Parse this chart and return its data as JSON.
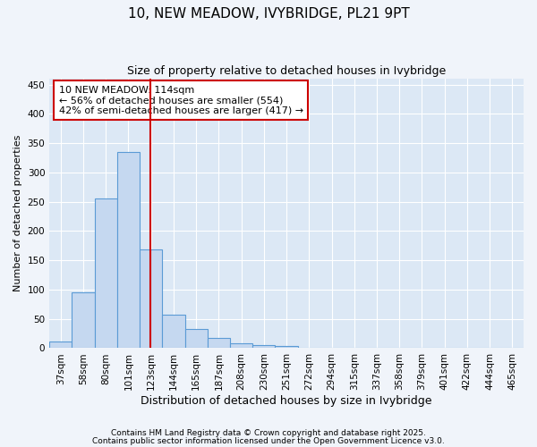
{
  "title1": "10, NEW MEADOW, IVYBRIDGE, PL21 9PT",
  "title2": "Size of property relative to detached houses in Ivybridge",
  "xlabel": "Distribution of detached houses by size in Ivybridge",
  "ylabel": "Number of detached properties",
  "categories": [
    "37sqm",
    "58sqm",
    "80sqm",
    "101sqm",
    "123sqm",
    "144sqm",
    "165sqm",
    "187sqm",
    "208sqm",
    "230sqm",
    "251sqm",
    "272sqm",
    "294sqm",
    "315sqm",
    "337sqm",
    "358sqm",
    "379sqm",
    "401sqm",
    "422sqm",
    "444sqm",
    "465sqm"
  ],
  "values": [
    12,
    95,
    255,
    335,
    168,
    57,
    32,
    18,
    8,
    5,
    4,
    1,
    1,
    0,
    1,
    0,
    0,
    0,
    1,
    0,
    0
  ],
  "bar_color": "#c5d8f0",
  "bar_edge_color": "#5b9bd5",
  "vline_x_index": 3.97,
  "vline_color": "#cc0000",
  "annotation_text": "10 NEW MEADOW: 114sqm\n← 56% of detached houses are smaller (554)\n42% of semi-detached houses are larger (417) →",
  "annotation_box_color": "#ffffff",
  "annotation_box_edge": "#cc0000",
  "ylim": [
    0,
    460
  ],
  "yticks": [
    0,
    50,
    100,
    150,
    200,
    250,
    300,
    350,
    400,
    450
  ],
  "footer1": "Contains HM Land Registry data © Crown copyright and database right 2025.",
  "footer2": "Contains public sector information licensed under the Open Government Licence v3.0.",
  "fig_bg_color": "#f0f4fa",
  "plot_bg_color": "#dce8f5",
  "title1_fontsize": 11,
  "title2_fontsize": 9,
  "xlabel_fontsize": 9,
  "ylabel_fontsize": 8,
  "tick_fontsize": 7.5,
  "annot_fontsize": 8,
  "footer_fontsize": 6.5
}
